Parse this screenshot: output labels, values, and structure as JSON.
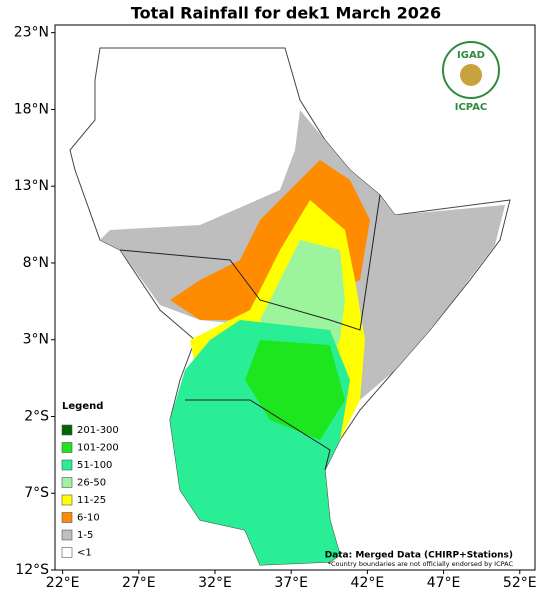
{
  "map": {
    "title": "Total Rainfall for dek1 March 2026",
    "xlim": [
      21.5,
      53
    ],
    "ylim": [
      -12,
      23.5
    ],
    "xticks": [
      {
        "value": 22,
        "label": "22°E"
      },
      {
        "value": 27,
        "label": "27°E"
      },
      {
        "value": 32,
        "label": "32°E"
      },
      {
        "value": 37,
        "label": "37°E"
      },
      {
        "value": 42,
        "label": "42°E"
      },
      {
        "value": 47,
        "label": "47°E"
      },
      {
        "value": 52,
        "label": "52°E"
      }
    ],
    "yticks": [
      {
        "value": 23,
        "label": "23°N"
      },
      {
        "value": 18,
        "label": "18°N"
      },
      {
        "value": 13,
        "label": "13°N"
      },
      {
        "value": 8,
        "label": "8°N"
      },
      {
        "value": 3,
        "label": "3°N"
      },
      {
        "value": -2,
        "label": "2°S"
      },
      {
        "value": -7,
        "label": "7°S"
      },
      {
        "value": -12,
        "label": "12°S"
      }
    ],
    "legend": {
      "title": "Legend",
      "items": [
        {
          "label": "201-300",
          "color": "#006400"
        },
        {
          "label": "101-200",
          "color": "#1ee61e"
        },
        {
          "label": "51-100",
          "color": "#2aee96"
        },
        {
          "label": "26-50",
          "color": "#9cf59c"
        },
        {
          "label": "11-25",
          "color": "#ffff00"
        },
        {
          "label": "6-10",
          "color": "#ff8c00"
        },
        {
          "label": "1-5",
          "color": "#bebebe"
        },
        {
          "label": "<1",
          "color": "#ffffff"
        }
      ]
    },
    "source": "Data: Merged Data (CHIRP+Stations)",
    "disclaimer": "*Country boundaries are not officially endorsed by ICPAC",
    "logo": {
      "top": "IGAD",
      "bottom": "ICPAC"
    }
  }
}
